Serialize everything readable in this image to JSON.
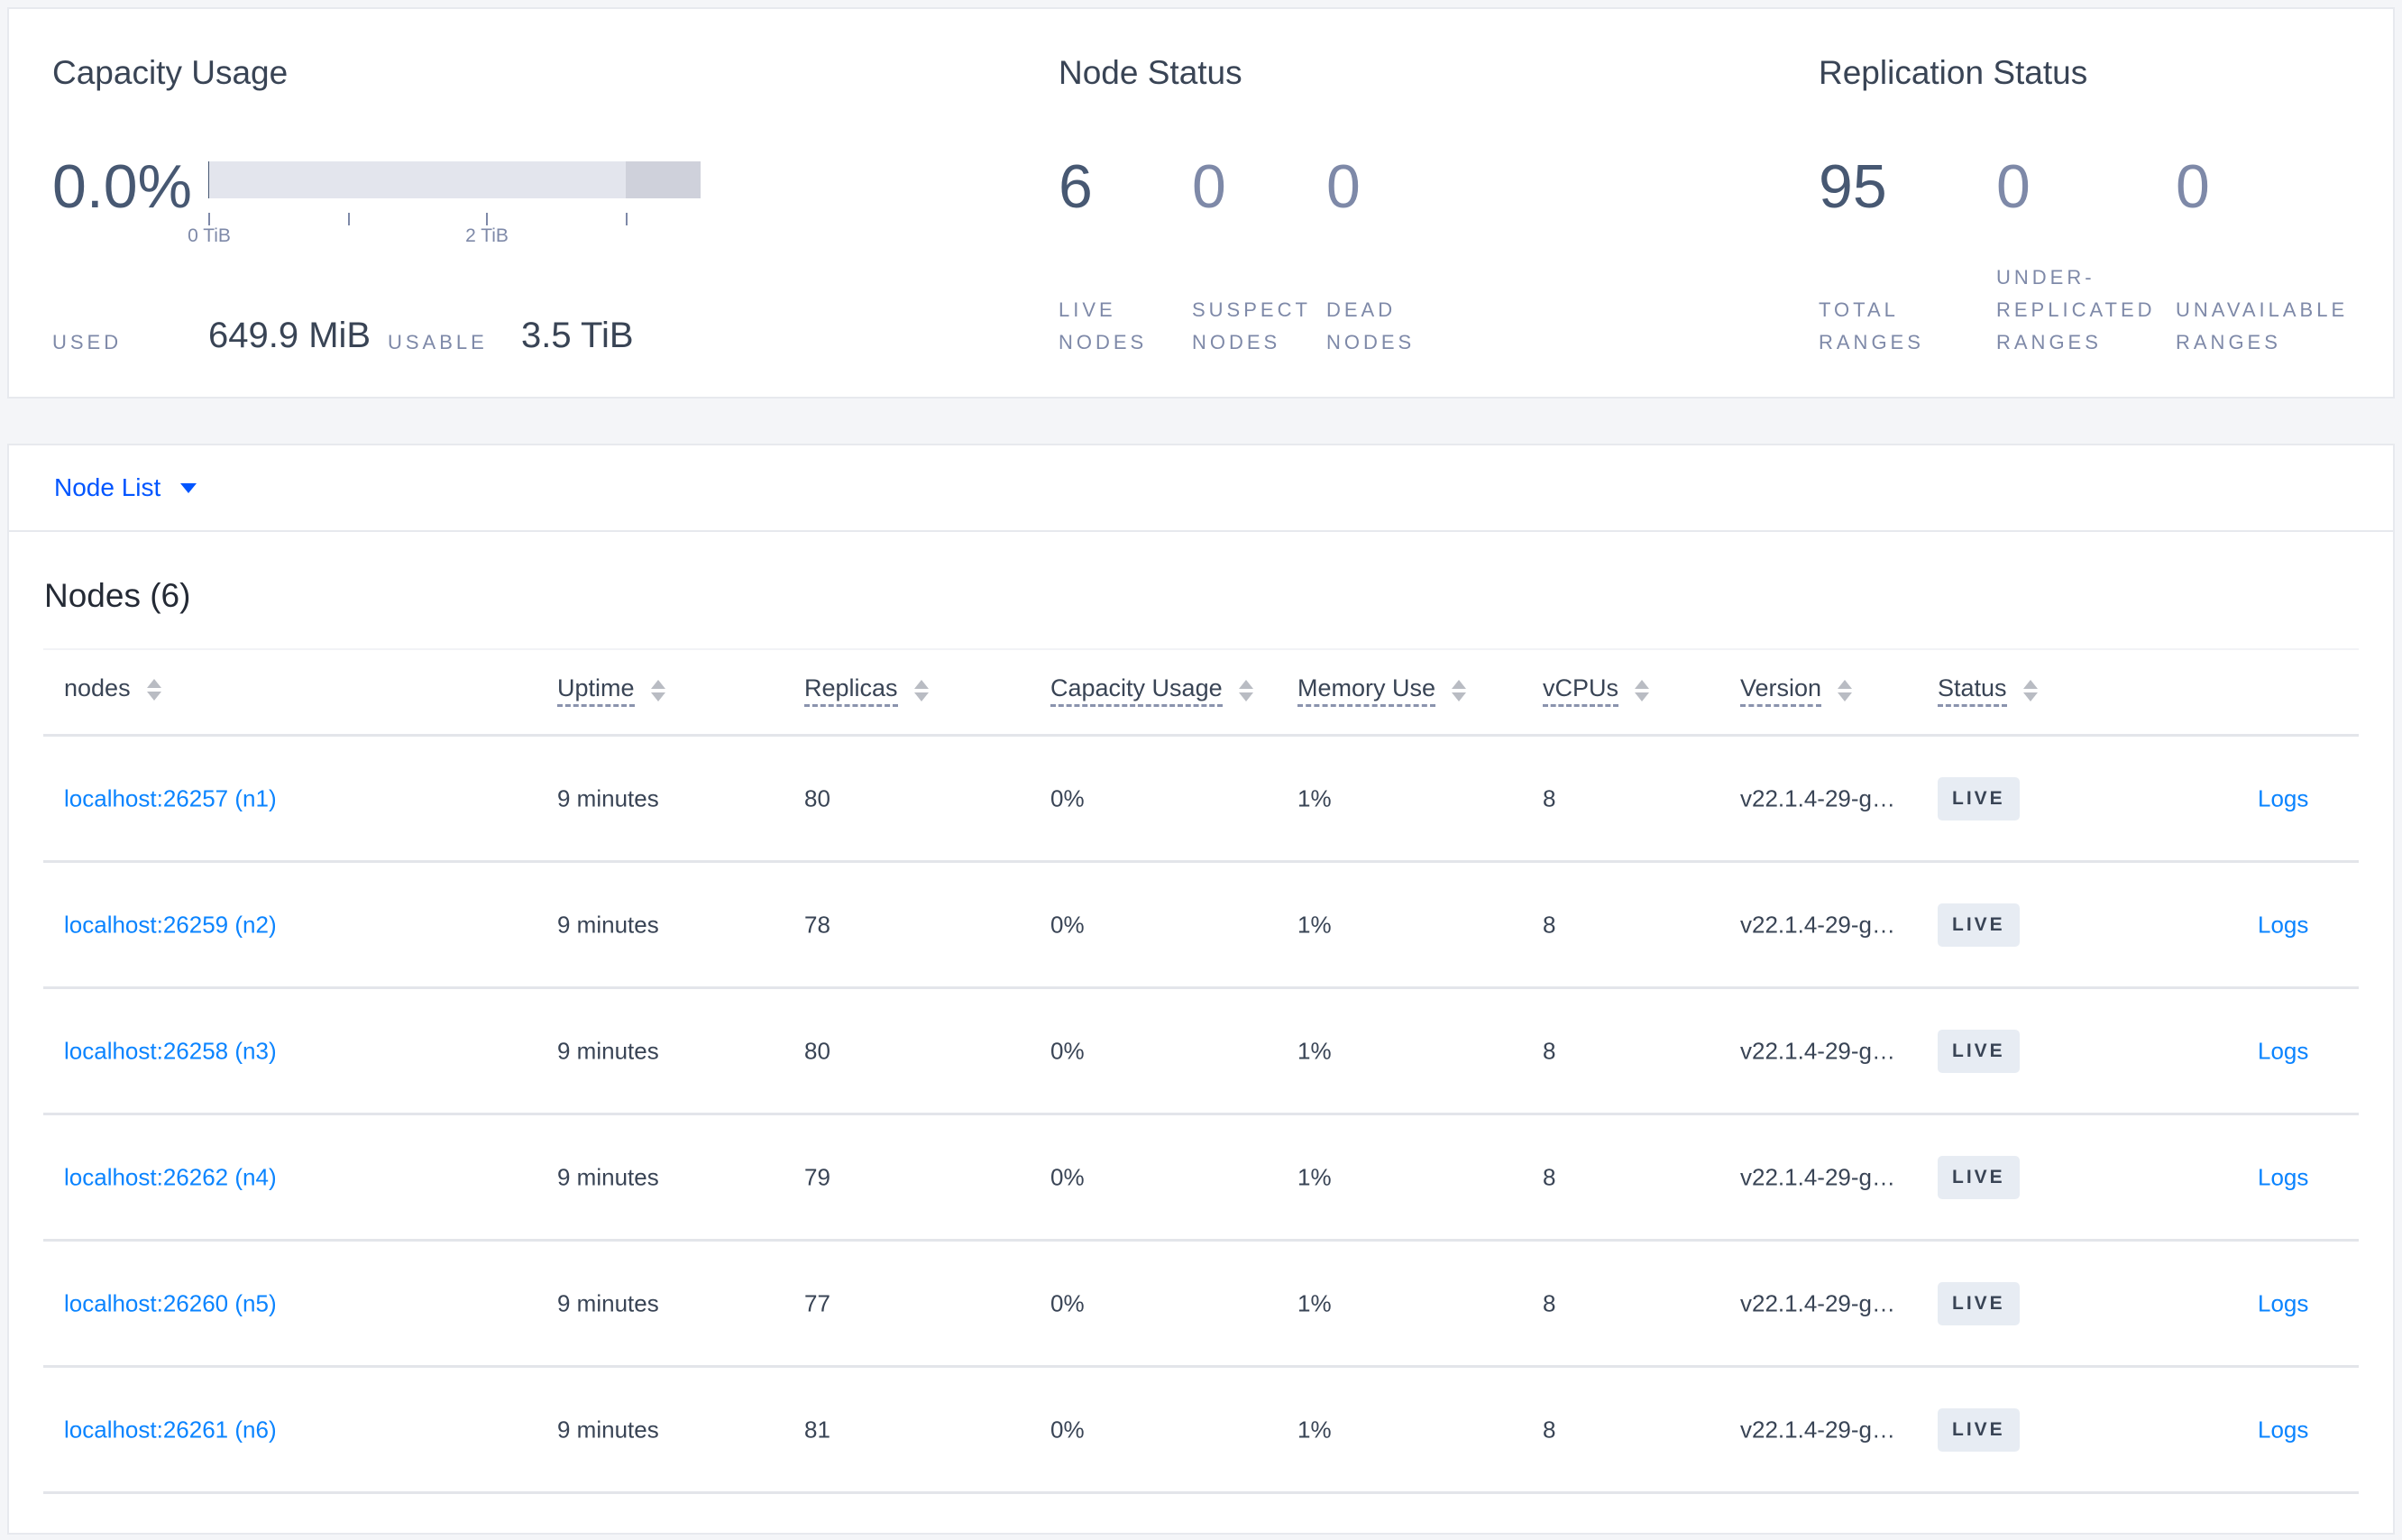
{
  "capacity": {
    "title": "Capacity Usage",
    "percent": "0.0%",
    "used_fraction": 0.0002,
    "ticks": [
      "0 TiB",
      "2 TiB"
    ],
    "used_label": "USED",
    "used_value": "649.9 MiB",
    "usable_label": "USABLE",
    "usable_value": "3.5 TiB"
  },
  "node_status": {
    "title": "Node Status",
    "live": "6",
    "live_label": [
      "LIVE",
      "NODES"
    ],
    "suspect": "0",
    "suspect_label": [
      "SUSPECT",
      "NODES"
    ],
    "dead": "0",
    "dead_label": [
      "DEAD",
      "NODES"
    ]
  },
  "replication": {
    "title": "Replication Status",
    "total": "95",
    "total_label": [
      "TOTAL",
      "RANGES"
    ],
    "under": "0",
    "under_label": [
      "UNDER-",
      "REPLICATED",
      "RANGES"
    ],
    "unavailable": "0",
    "unavailable_label": [
      "UNAVAILABLE",
      "RANGES"
    ]
  },
  "view_selector": {
    "label": "Node List"
  },
  "table": {
    "title": "Nodes (6)",
    "headers": [
      "nodes",
      "Uptime",
      "Replicas",
      "Capacity Usage",
      "Memory Use",
      "vCPUs",
      "Version",
      "Status"
    ],
    "rows": [
      {
        "node": "localhost:26257 (n1)",
        "uptime": "9 minutes",
        "replicas": "80",
        "capacity": "0%",
        "memory": "1%",
        "vcpus": "8",
        "version": "v22.1.4-29-g…",
        "status": "LIVE",
        "logs": "Logs"
      },
      {
        "node": "localhost:26259 (n2)",
        "uptime": "9 minutes",
        "replicas": "78",
        "capacity": "0%",
        "memory": "1%",
        "vcpus": "8",
        "version": "v22.1.4-29-g…",
        "status": "LIVE",
        "logs": "Logs"
      },
      {
        "node": "localhost:26258 (n3)",
        "uptime": "9 minutes",
        "replicas": "80",
        "capacity": "0%",
        "memory": "1%",
        "vcpus": "8",
        "version": "v22.1.4-29-g…",
        "status": "LIVE",
        "logs": "Logs"
      },
      {
        "node": "localhost:26262 (n4)",
        "uptime": "9 minutes",
        "replicas": "79",
        "capacity": "0%",
        "memory": "1%",
        "vcpus": "8",
        "version": "v22.1.4-29-g…",
        "status": "LIVE",
        "logs": "Logs"
      },
      {
        "node": "localhost:26260 (n5)",
        "uptime": "9 minutes",
        "replicas": "77",
        "capacity": "0%",
        "memory": "1%",
        "vcpus": "8",
        "version": "v22.1.4-29-g…",
        "status": "LIVE",
        "logs": "Logs"
      },
      {
        "node": "localhost:26261 (n6)",
        "uptime": "9 minutes",
        "replicas": "81",
        "capacity": "0%",
        "memory": "1%",
        "vcpus": "8",
        "version": "v22.1.4-29-g…",
        "status": "LIVE",
        "logs": "Logs"
      }
    ]
  }
}
